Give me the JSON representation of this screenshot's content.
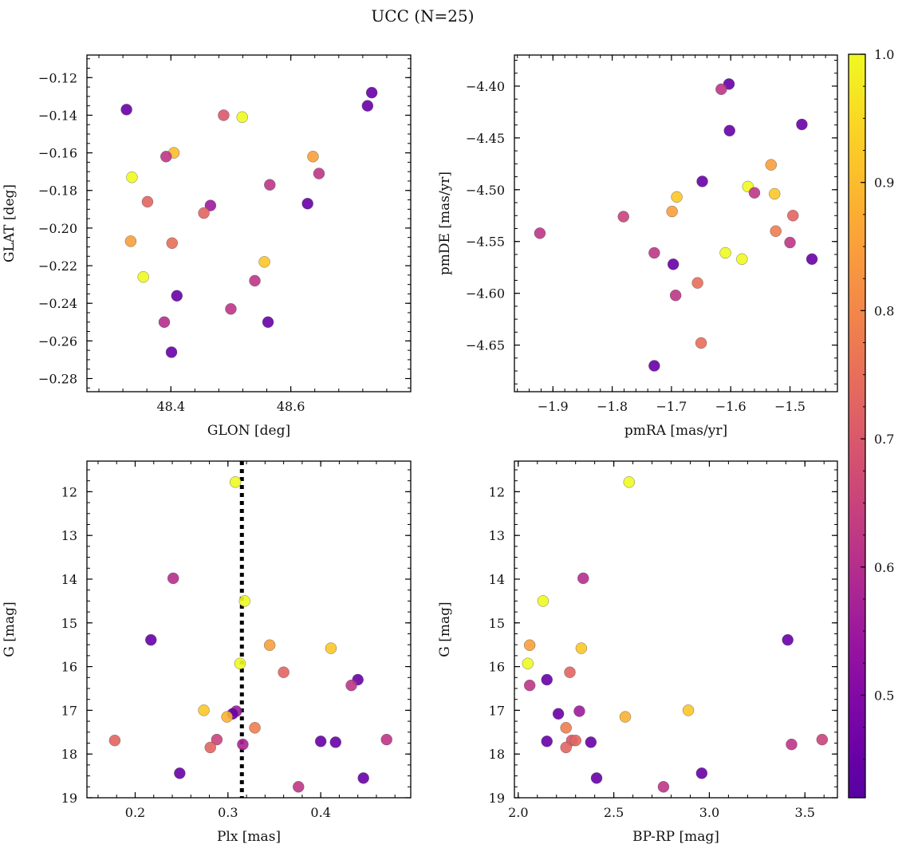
{
  "chart_data": {
    "title": "UCC (N=25)",
    "colorbar": {
      "range": [
        0.42,
        1.0
      ],
      "ticks": [
        0.5,
        0.6,
        0.7,
        0.8,
        0.9,
        1.0
      ],
      "tick_labels": [
        "0.5",
        "0.6",
        "0.7",
        "0.8",
        "0.9",
        "1.0"
      ],
      "colormap": "plasma"
    },
    "panels": [
      {
        "type": "scatter",
        "xlabel": "GLON [deg]",
        "ylabel": "GLAT [deg]",
        "xlim": [
          48.26,
          48.8
        ],
        "ylim": [
          -0.287,
          -0.108
        ],
        "x_ticks": [
          48.4,
          48.6
        ],
        "x_tick_labels": [
          "48.4",
          "48.6"
        ],
        "y_ticks": [
          -0.12,
          -0.14,
          -0.16,
          -0.18,
          -0.2,
          -0.22,
          -0.24,
          -0.26,
          -0.28
        ],
        "y_tick_labels": [
          "−0.12",
          "−0.14",
          "−0.16",
          "−0.18",
          "−0.20",
          "−0.22",
          "−0.24",
          "−0.26",
          "−0.28"
        ],
        "y_inverted": false,
        "points": [
          {
            "x": 48.326,
            "y": -0.137,
            "c": 0.45
          },
          {
            "x": 48.735,
            "y": -0.128,
            "c": 0.45
          },
          {
            "x": 48.728,
            "y": -0.135,
            "c": 0.45
          },
          {
            "x": 48.488,
            "y": -0.14,
            "c": 0.7
          },
          {
            "x": 48.519,
            "y": -0.141,
            "c": 1.0
          },
          {
            "x": 48.405,
            "y": -0.16,
            "c": 0.9
          },
          {
            "x": 48.392,
            "y": -0.162,
            "c": 0.62
          },
          {
            "x": 48.637,
            "y": -0.162,
            "c": 0.85
          },
          {
            "x": 48.335,
            "y": -0.173,
            "c": 1.0
          },
          {
            "x": 48.647,
            "y": -0.171,
            "c": 0.62
          },
          {
            "x": 48.565,
            "y": -0.177,
            "c": 0.62
          },
          {
            "x": 48.361,
            "y": -0.186,
            "c": 0.73
          },
          {
            "x": 48.628,
            "y": -0.187,
            "c": 0.45
          },
          {
            "x": 48.466,
            "y": -0.188,
            "c": 0.55
          },
          {
            "x": 48.455,
            "y": -0.192,
            "c": 0.73
          },
          {
            "x": 48.333,
            "y": -0.207,
            "c": 0.85
          },
          {
            "x": 48.402,
            "y": -0.208,
            "c": 0.75
          },
          {
            "x": 48.556,
            "y": -0.218,
            "c": 0.92
          },
          {
            "x": 48.354,
            "y": -0.226,
            "c": 1.0
          },
          {
            "x": 48.54,
            "y": -0.228,
            "c": 0.62
          },
          {
            "x": 48.41,
            "y": -0.236,
            "c": 0.45
          },
          {
            "x": 48.5,
            "y": -0.243,
            "c": 0.62
          },
          {
            "x": 48.389,
            "y": -0.25,
            "c": 0.6
          },
          {
            "x": 48.562,
            "y": -0.25,
            "c": 0.45
          },
          {
            "x": 48.401,
            "y": -0.266,
            "c": 0.45
          }
        ]
      },
      {
        "type": "scatter",
        "xlabel": "pmRA [mas/yr]",
        "ylabel": "pmDE [mas/yr]",
        "xlim": [
          -1.965,
          -1.42
        ],
        "ylim": [
          -4.695,
          -4.37
        ],
        "x_ticks": [
          -1.9,
          -1.8,
          -1.7,
          -1.6,
          -1.5
        ],
        "x_tick_labels": [
          "−1.9",
          "−1.8",
          "−1.7",
          "−1.6",
          "−1.5"
        ],
        "y_ticks": [
          -4.4,
          -4.45,
          -4.5,
          -4.55,
          -4.6,
          -4.65
        ],
        "y_tick_labels": [
          "−4.40",
          "−4.45",
          "−4.50",
          "−4.55",
          "−4.60",
          "−4.65"
        ],
        "y_inverted": false,
        "points": [
          {
            "x": -1.603,
            "y": -4.398,
            "c": 0.45
          },
          {
            "x": -1.616,
            "y": -4.403,
            "c": 0.62
          },
          {
            "x": -1.602,
            "y": -4.443,
            "c": 0.45
          },
          {
            "x": -1.48,
            "y": -4.437,
            "c": 0.45
          },
          {
            "x": -1.532,
            "y": -4.476,
            "c": 0.85
          },
          {
            "x": -1.648,
            "y": -4.492,
            "c": 0.45
          },
          {
            "x": -1.571,
            "y": -4.497,
            "c": 1.0
          },
          {
            "x": -1.56,
            "y": -4.503,
            "c": 0.62
          },
          {
            "x": -1.526,
            "y": -4.504,
            "c": 0.92
          },
          {
            "x": -1.691,
            "y": -4.507,
            "c": 0.92
          },
          {
            "x": -1.699,
            "y": -4.521,
            "c": 0.85
          },
          {
            "x": -1.781,
            "y": -4.526,
            "c": 0.65
          },
          {
            "x": -1.495,
            "y": -4.525,
            "c": 0.73
          },
          {
            "x": -1.922,
            "y": -4.542,
            "c": 0.62
          },
          {
            "x": -1.524,
            "y": -4.54,
            "c": 0.78
          },
          {
            "x": -1.5,
            "y": -4.551,
            "c": 0.62
          },
          {
            "x": -1.729,
            "y": -4.561,
            "c": 0.62
          },
          {
            "x": -1.609,
            "y": -4.561,
            "c": 1.0
          },
          {
            "x": -1.581,
            "y": -4.567,
            "c": 1.0
          },
          {
            "x": -1.463,
            "y": -4.567,
            "c": 0.45
          },
          {
            "x": -1.697,
            "y": -4.572,
            "c": 0.45
          },
          {
            "x": -1.656,
            "y": -4.59,
            "c": 0.75
          },
          {
            "x": -1.693,
            "y": -4.602,
            "c": 0.62
          },
          {
            "x": -1.65,
            "y": -4.648,
            "c": 0.75
          },
          {
            "x": -1.729,
            "y": -4.67,
            "c": 0.45
          }
        ]
      },
      {
        "type": "scatter",
        "xlabel": "Plx [mas]",
        "ylabel": "G [mag]",
        "xlim": [
          0.148,
          0.497
        ],
        "ylim": [
          11.3,
          19.0
        ],
        "x_ticks": [
          0.2,
          0.3,
          0.4
        ],
        "x_tick_labels": [
          "0.2",
          "0.3",
          "0.4"
        ],
        "y_ticks": [
          12,
          13,
          14,
          15,
          16,
          17,
          18,
          19
        ],
        "y_tick_labels": [
          "12",
          "13",
          "14",
          "15",
          "16",
          "17",
          "18",
          "19"
        ],
        "y_inverted": true,
        "vline": {
          "x": 0.315,
          "style": "dotted"
        },
        "points": [
          {
            "x": 0.308,
            "y": 11.78,
            "c": 1.0
          },
          {
            "x": 0.241,
            "y": 13.98,
            "c": 0.6
          },
          {
            "x": 0.318,
            "y": 14.5,
            "c": 1.0
          },
          {
            "x": 0.217,
            "y": 15.39,
            "c": 0.45
          },
          {
            "x": 0.345,
            "y": 15.51,
            "c": 0.85
          },
          {
            "x": 0.411,
            "y": 15.58,
            "c": 0.92
          },
          {
            "x": 0.313,
            "y": 15.93,
            "c": 1.0
          },
          {
            "x": 0.36,
            "y": 16.13,
            "c": 0.73
          },
          {
            "x": 0.44,
            "y": 16.3,
            "c": 0.45
          },
          {
            "x": 0.433,
            "y": 16.43,
            "c": 0.62
          },
          {
            "x": 0.274,
            "y": 17.0,
            "c": 0.92
          },
          {
            "x": 0.309,
            "y": 17.02,
            "c": 0.55
          },
          {
            "x": 0.305,
            "y": 17.08,
            "c": 0.45
          },
          {
            "x": 0.299,
            "y": 17.15,
            "c": 0.88
          },
          {
            "x": 0.329,
            "y": 17.4,
            "c": 0.78
          },
          {
            "x": 0.178,
            "y": 17.69,
            "c": 0.73
          },
          {
            "x": 0.288,
            "y": 17.67,
            "c": 0.65
          },
          {
            "x": 0.4,
            "y": 17.71,
            "c": 0.45
          },
          {
            "x": 0.416,
            "y": 17.73,
            "c": 0.45
          },
          {
            "x": 0.471,
            "y": 17.67,
            "c": 0.62
          },
          {
            "x": 0.316,
            "y": 17.78,
            "c": 0.58
          },
          {
            "x": 0.281,
            "y": 17.85,
            "c": 0.73
          },
          {
            "x": 0.248,
            "y": 18.44,
            "c": 0.45
          },
          {
            "x": 0.446,
            "y": 18.55,
            "c": 0.45
          },
          {
            "x": 0.376,
            "y": 18.75,
            "c": 0.62
          }
        ]
      },
      {
        "type": "scatter",
        "xlabel": "BP-RP [mag]",
        "ylabel": "G [mag]",
        "xlim": [
          1.98,
          3.67
        ],
        "ylim": [
          11.3,
          19.0
        ],
        "x_ticks": [
          2.0,
          2.5,
          3.0,
          3.5
        ],
        "x_tick_labels": [
          "2.0",
          "2.5",
          "3.0",
          "3.5"
        ],
        "y_ticks": [
          12,
          13,
          14,
          15,
          16,
          17,
          18,
          19
        ],
        "y_tick_labels": [
          "12",
          "13",
          "14",
          "15",
          "16",
          "17",
          "18",
          "19"
        ],
        "y_inverted": true,
        "points": [
          {
            "x": 2.58,
            "y": 11.78,
            "c": 1.0
          },
          {
            "x": 2.34,
            "y": 13.98,
            "c": 0.6
          },
          {
            "x": 2.13,
            "y": 14.5,
            "c": 1.0
          },
          {
            "x": 3.41,
            "y": 15.39,
            "c": 0.45
          },
          {
            "x": 2.06,
            "y": 15.51,
            "c": 0.85
          },
          {
            "x": 2.33,
            "y": 15.58,
            "c": 0.92
          },
          {
            "x": 2.05,
            "y": 15.93,
            "c": 1.0
          },
          {
            "x": 2.27,
            "y": 16.13,
            "c": 0.73
          },
          {
            "x": 2.15,
            "y": 16.3,
            "c": 0.45
          },
          {
            "x": 2.06,
            "y": 16.43,
            "c": 0.62
          },
          {
            "x": 2.89,
            "y": 17.0,
            "c": 0.92
          },
          {
            "x": 2.32,
            "y": 17.02,
            "c": 0.55
          },
          {
            "x": 2.21,
            "y": 17.08,
            "c": 0.45
          },
          {
            "x": 2.56,
            "y": 17.15,
            "c": 0.88
          },
          {
            "x": 2.25,
            "y": 17.4,
            "c": 0.78
          },
          {
            "x": 3.59,
            "y": 17.67,
            "c": 0.65
          },
          {
            "x": 2.15,
            "y": 17.71,
            "c": 0.45
          },
          {
            "x": 2.38,
            "y": 17.73,
            "c": 0.45
          },
          {
            "x": 2.28,
            "y": 17.69,
            "c": 0.7
          },
          {
            "x": 2.3,
            "y": 17.69,
            "c": 0.73
          },
          {
            "x": 3.43,
            "y": 17.78,
            "c": 0.62
          },
          {
            "x": 2.25,
            "y": 17.85,
            "c": 0.73
          },
          {
            "x": 2.41,
            "y": 18.55,
            "c": 0.45
          },
          {
            "x": 2.96,
            "y": 18.44,
            "c": 0.45
          },
          {
            "x": 2.76,
            "y": 18.75,
            "c": 0.62
          }
        ]
      }
    ]
  }
}
